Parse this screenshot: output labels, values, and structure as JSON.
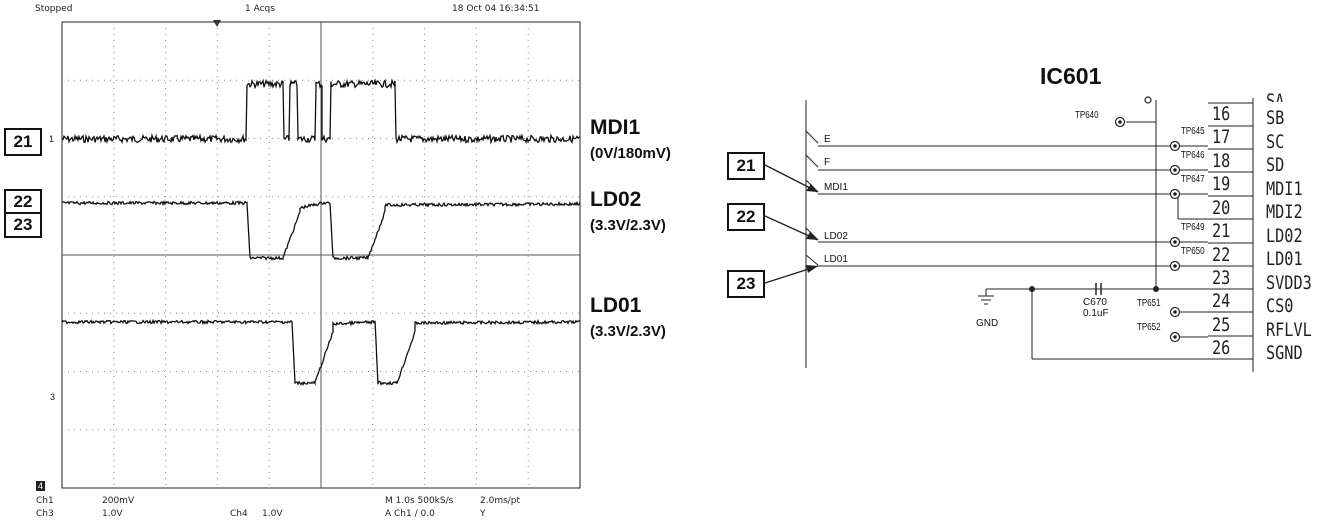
{
  "oscilloscope": {
    "header": {
      "status": "Stopped",
      "rate": "1 Acqs",
      "date": "18 Oct 04 16:34:51"
    },
    "footer": {
      "ch1": "Ch1",
      "ch1_scale": "200mV",
      "ch3": "Ch3",
      "ch3_scale": "1.0V",
      "ch4": "Ch4",
      "ch4_scale": "1.0V",
      "timebase": "M 1.0s 500kS/s",
      "sample": "2.0ms/pt",
      "trigger": "A Ch1 / 0.0",
      "trigger_y": "Y"
    },
    "callouts": [
      "21",
      "22",
      "23"
    ],
    "signals": [
      {
        "name": "MDI1",
        "levels": "(0V/180mV)"
      },
      {
        "name": "LD02",
        "levels": "(3.3V/2.3V)"
      },
      {
        "name": "LD01",
        "levels": "(3.3V/2.3V)"
      }
    ],
    "markers": {
      "ch1": "1",
      "ch3": "3",
      "ch4": "4"
    }
  },
  "schematic": {
    "title": "IC601",
    "callouts": [
      "21",
      "22",
      "23"
    ],
    "nets": {
      "e": "E",
      "f": "F",
      "mdi1": "MDI1",
      "ld02": "LD02",
      "ld01": "LD01",
      "gnd": "GND"
    },
    "capacitor": {
      "ref": "C670",
      "value": "0.1uF"
    },
    "pins": [
      {
        "num": "16",
        "name": "SB",
        "tp": "TP640"
      },
      {
        "num": "17",
        "name": "SC",
        "tp": "TP645"
      },
      {
        "num": "18",
        "name": "SD",
        "tp": "TP646"
      },
      {
        "num": "19",
        "name": "MDI1",
        "tp": "TP647"
      },
      {
        "num": "20",
        "name": "MDI2",
        "tp": ""
      },
      {
        "num": "21",
        "name": "LD02",
        "tp": "TP649"
      },
      {
        "num": "22",
        "name": "LD01",
        "tp": "TP650"
      },
      {
        "num": "23",
        "name": "SVDD3",
        "tp": ""
      },
      {
        "num": "24",
        "name": "CS0",
        "tp": "TP651"
      },
      {
        "num": "25",
        "name": "RFLVL",
        "tp": "TP652"
      },
      {
        "num": "26",
        "name": "SGND",
        "tp": ""
      }
    ],
    "partial_top_pin": "SA"
  }
}
